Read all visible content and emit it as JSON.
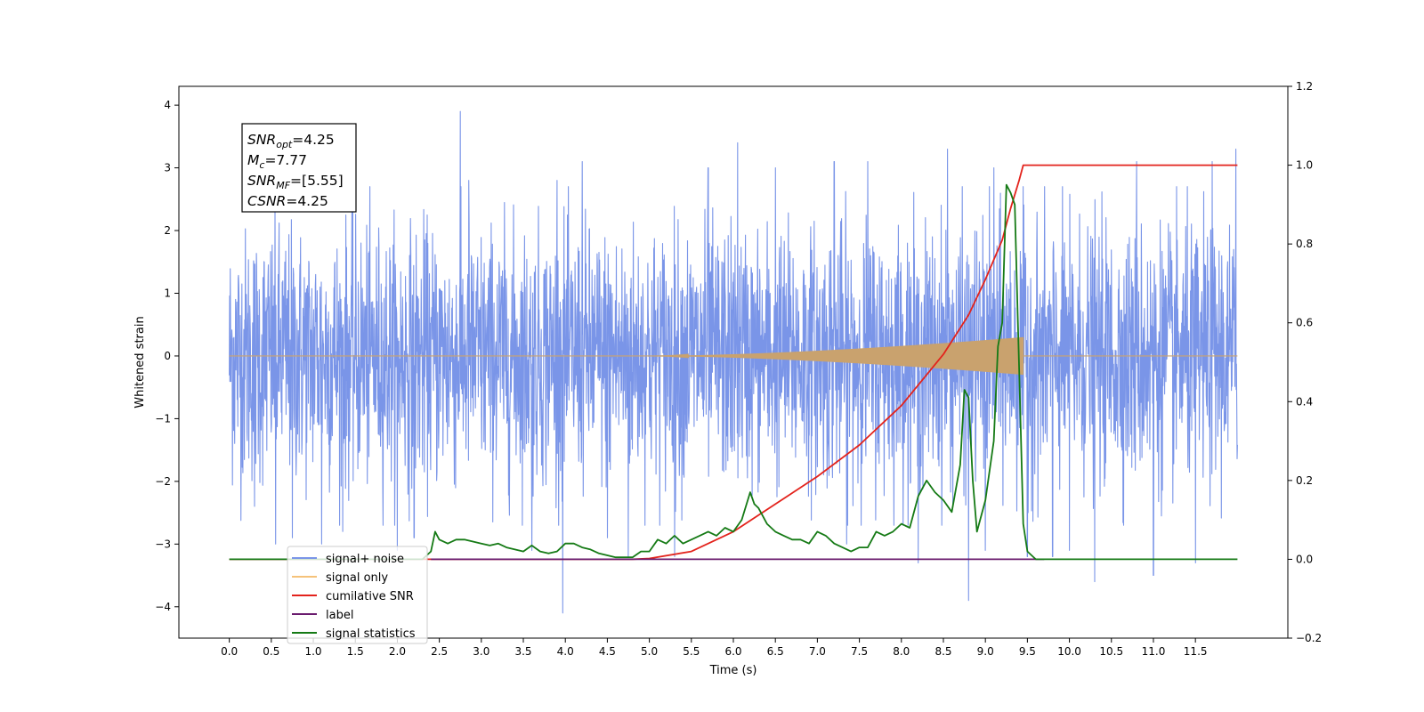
{
  "chart_data": {
    "type": "line",
    "xlabel": "Time (s)",
    "ylabel": "Whitened strain",
    "xlim": [
      -0.6,
      12.6
    ],
    "ylim": [
      -4.5,
      4.3
    ],
    "y2lim": [
      -0.2,
      1.2
    ],
    "x_ticks": [
      "0.0",
      "0.5",
      "1.0",
      "1.5",
      "2.0",
      "2.5",
      "3.0",
      "3.5",
      "4.0",
      "4.5",
      "5.0",
      "5.5",
      "6.0",
      "6.5",
      "7.0",
      "7.5",
      "8.0",
      "8.5",
      "9.0",
      "9.5",
      "10.0",
      "10.5",
      "11.0",
      "11.5"
    ],
    "y_ticks": [
      "4",
      "3",
      "2",
      "1",
      "0",
      "−1",
      "−2",
      "−3",
      "−4"
    ],
    "y2_ticks": [
      "1.2",
      "1.0",
      "0.8",
      "0.6",
      "0.4",
      "0.2",
      "0.0",
      "−0.2"
    ],
    "info_box": [
      {
        "name": "SNR",
        "sub": "opt",
        "value": "=4.25"
      },
      {
        "name": "M",
        "sub": "c",
        "value": "=7.77"
      },
      {
        "name": "SNR",
        "sub": "MF",
        "value": "=[5.55]"
      },
      {
        "name": "CSNR",
        "sub": "",
        "value": "=4.25"
      }
    ],
    "legend": {
      "placement": "lower-left",
      "entries": [
        {
          "label": "signal+ noise",
          "color": "#7a95e8"
        },
        {
          "label": "signal only",
          "color": "#f5c27a"
        },
        {
          "label": "cumilative SNR",
          "color": "#e3231c"
        },
        {
          "label": "label",
          "color": "#6a1b6e"
        },
        {
          "label": "signal statistics",
          "color": "#157a15"
        }
      ]
    },
    "series": [
      {
        "name": "signal+ noise",
        "axis": "left",
        "color": "#7a95e8",
        "x_range": [
          0.0,
          12.0
        ],
        "noise_sigma": 1.0,
        "spikes": [
          [
            0.3,
            -2.4
          ],
          [
            0.55,
            -3.0
          ],
          [
            0.75,
            -2.9
          ],
          [
            1.1,
            -3.0
          ],
          [
            1.35,
            -2.8
          ],
          [
            2.0,
            -3.1
          ],
          [
            2.2,
            -2.9
          ],
          [
            2.75,
            3.9
          ],
          [
            2.85,
            2.8
          ],
          [
            3.6,
            -3.1
          ],
          [
            3.9,
            2.8
          ],
          [
            3.97,
            -4.1
          ],
          [
            4.2,
            3.1
          ],
          [
            4.5,
            -2.9
          ],
          [
            4.75,
            -3.2
          ],
          [
            5.3,
            -3.2
          ],
          [
            5.7,
            3.0
          ],
          [
            6.05,
            3.4
          ],
          [
            6.5,
            3.0
          ],
          [
            7.2,
            3.1
          ],
          [
            7.35,
            -3.0
          ],
          [
            7.6,
            3.1
          ],
          [
            8.2,
            -3.3
          ],
          [
            8.55,
            3.3
          ],
          [
            8.8,
            -3.9
          ],
          [
            9.0,
            -3.1
          ],
          [
            9.1,
            3.0
          ],
          [
            9.5,
            -3.2
          ],
          [
            9.8,
            -3.2
          ],
          [
            10.0,
            -3.1
          ],
          [
            10.3,
            -3.6
          ],
          [
            10.8,
            3.1
          ],
          [
            11.0,
            -3.5
          ],
          [
            11.5,
            -3.3
          ],
          [
            11.7,
            3.1
          ],
          [
            11.98,
            3.3
          ]
        ]
      },
      {
        "name": "signal only",
        "axis": "left",
        "color": "#c9a26e",
        "x_range": [
          0.0,
          12.0
        ],
        "chirp_start": 5.0,
        "chirp_end": 9.45,
        "peak_amplitude": 0.3
      },
      {
        "name": "cumilative SNR",
        "axis": "right",
        "color": "#e3231c",
        "x": [
          0.0,
          4.8,
          5.0,
          5.5,
          6.0,
          6.5,
          7.0,
          7.5,
          8.0,
          8.5,
          8.8,
          9.0,
          9.2,
          9.3,
          9.4,
          9.45,
          12.0
        ],
        "y": [
          0.0,
          0.0,
          0.002,
          0.02,
          0.07,
          0.14,
          0.21,
          0.29,
          0.39,
          0.52,
          0.62,
          0.71,
          0.81,
          0.89,
          0.96,
          1.0,
          1.0
        ]
      },
      {
        "name": "label",
        "axis": "right",
        "color": "#6a1b6e",
        "x": [
          2.4,
          9.7
        ],
        "y": [
          0.0,
          0.0
        ]
      },
      {
        "name": "signal statistics",
        "axis": "right",
        "color": "#157a15",
        "x": [
          0.0,
          2.3,
          2.4,
          2.45,
          2.5,
          2.6,
          2.7,
          2.8,
          2.9,
          3.0,
          3.1,
          3.2,
          3.3,
          3.4,
          3.5,
          3.6,
          3.7,
          3.8,
          3.9,
          4.0,
          4.1,
          4.2,
          4.3,
          4.4,
          4.5,
          4.6,
          4.7,
          4.8,
          4.9,
          5.0,
          5.1,
          5.2,
          5.3,
          5.4,
          5.5,
          5.6,
          5.7,
          5.8,
          5.9,
          6.0,
          6.1,
          6.2,
          6.25,
          6.3,
          6.4,
          6.5,
          6.6,
          6.7,
          6.8,
          6.9,
          7.0,
          7.1,
          7.2,
          7.3,
          7.4,
          7.5,
          7.6,
          7.7,
          7.8,
          7.9,
          8.0,
          8.1,
          8.2,
          8.3,
          8.4,
          8.5,
          8.6,
          8.7,
          8.75,
          8.8,
          8.85,
          8.9,
          9.0,
          9.1,
          9.15,
          9.2,
          9.25,
          9.3,
          9.35,
          9.4,
          9.45,
          9.5,
          9.55,
          9.6,
          9.7,
          10.0,
          11.5,
          12.0
        ],
        "y": [
          0.0,
          0.0,
          0.02,
          0.07,
          0.05,
          0.04,
          0.05,
          0.05,
          0.045,
          0.04,
          0.035,
          0.04,
          0.03,
          0.025,
          0.02,
          0.035,
          0.02,
          0.015,
          0.02,
          0.04,
          0.04,
          0.03,
          0.025,
          0.015,
          0.01,
          0.005,
          0.005,
          0.005,
          0.02,
          0.02,
          0.05,
          0.04,
          0.06,
          0.04,
          0.05,
          0.06,
          0.07,
          0.06,
          0.08,
          0.07,
          0.1,
          0.17,
          0.14,
          0.13,
          0.09,
          0.07,
          0.06,
          0.05,
          0.05,
          0.04,
          0.07,
          0.06,
          0.04,
          0.03,
          0.02,
          0.03,
          0.03,
          0.07,
          0.06,
          0.07,
          0.09,
          0.08,
          0.16,
          0.2,
          0.17,
          0.15,
          0.12,
          0.24,
          0.43,
          0.41,
          0.2,
          0.07,
          0.15,
          0.3,
          0.54,
          0.6,
          0.95,
          0.93,
          0.9,
          0.5,
          0.09,
          0.02,
          0.01,
          0.0,
          0.0,
          0.0,
          0.0,
          0.0
        ]
      }
    ]
  }
}
